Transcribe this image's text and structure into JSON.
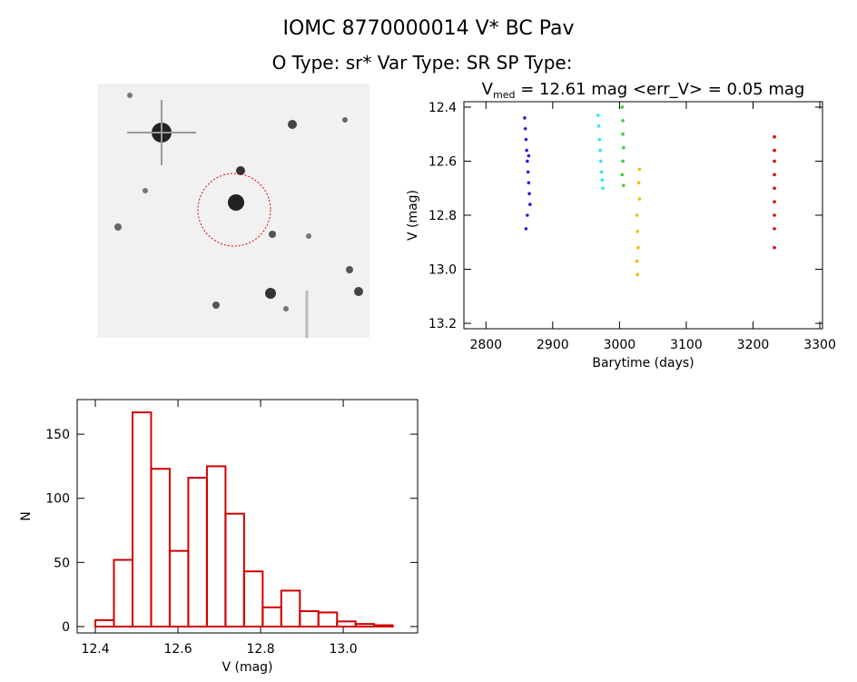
{
  "header": {
    "title": "IOMC 8770000014    V* BC Pav",
    "subtitle": "O Type: sr*   Var Type: SR   SP Type:"
  },
  "chart_data": [
    {
      "type": "scatter",
      "title": {
        "v": "V",
        "sub": "med",
        "rest": " = 12.61 mag <err_V> = 0.05 mag"
      },
      "x_label": "Barytime (days)",
      "y_label": "V (mag)",
      "xlim": [
        2767,
        3304
      ],
      "xticks": [
        2800,
        2900,
        3000,
        3100,
        3200,
        3300
      ],
      "ylim": [
        13.22,
        12.38
      ],
      "yticks": [
        12.4,
        12.6,
        12.8,
        {
          "value": 13,
          "label": "13.0"
        },
        13.2
      ],
      "series": [
        {
          "color": "#2a1fd0",
          "x": [
            2858,
            2859,
            2860,
            2861,
            2862,
            2863,
            2864,
            2865,
            2866,
            2862,
            2860,
            2864
          ],
          "values": [
            12.44,
            12.48,
            12.52,
            12.56,
            12.6,
            12.64,
            12.68,
            12.72,
            12.76,
            12.8,
            12.85,
            12.58
          ]
        },
        {
          "color": "#2ee8f0",
          "x": [
            2968,
            2969,
            2970,
            2971,
            2972,
            2973,
            2974,
            2975
          ],
          "values": [
            12.43,
            12.47,
            12.52,
            12.56,
            12.6,
            12.64,
            12.67,
            12.7
          ]
        },
        {
          "color": "#3ad23a",
          "x": [
            3004,
            3005,
            3005,
            3006,
            3005,
            3004,
            3006
          ],
          "values": [
            12.4,
            12.45,
            12.5,
            12.55,
            12.6,
            12.65,
            12.69
          ]
        },
        {
          "color": "#f0c000",
          "x": [
            3030,
            3029,
            3030,
            3026,
            3027,
            3028,
            3026,
            3027
          ],
          "values": [
            12.63,
            12.68,
            12.74,
            12.8,
            12.86,
            12.92,
            12.97,
            13.02
          ]
        },
        {
          "color": "#d01010",
          "x": [
            3232,
            3232,
            3232,
            3232,
            3232,
            3232,
            3232,
            3232,
            3232
          ],
          "values": [
            12.51,
            12.56,
            12.6,
            12.65,
            12.7,
            12.75,
            12.8,
            12.85,
            12.92
          ]
        }
      ]
    },
    {
      "type": "histogram",
      "x_label": "V (mag)",
      "y_label": "N",
      "color": "#d00000",
      "xlim": [
        12.356,
        13.18
      ],
      "xticks": [
        12.4,
        12.6,
        12.8,
        {
          "value": 13,
          "label": "13.0"
        }
      ],
      "ylim": [
        -5,
        177
      ],
      "yticks": [
        0,
        50,
        100,
        150
      ],
      "bins": [
        12.4,
        12.445,
        12.49,
        12.535,
        12.58,
        12.625,
        12.67,
        12.715,
        12.76,
        12.805,
        12.85,
        12.895,
        12.94,
        12.985,
        13.03,
        13.075,
        13.12
      ],
      "values": [
        5,
        52,
        167,
        123,
        59,
        116,
        125,
        88,
        43,
        15,
        28,
        12,
        11,
        4,
        2,
        1
      ]
    }
  ]
}
